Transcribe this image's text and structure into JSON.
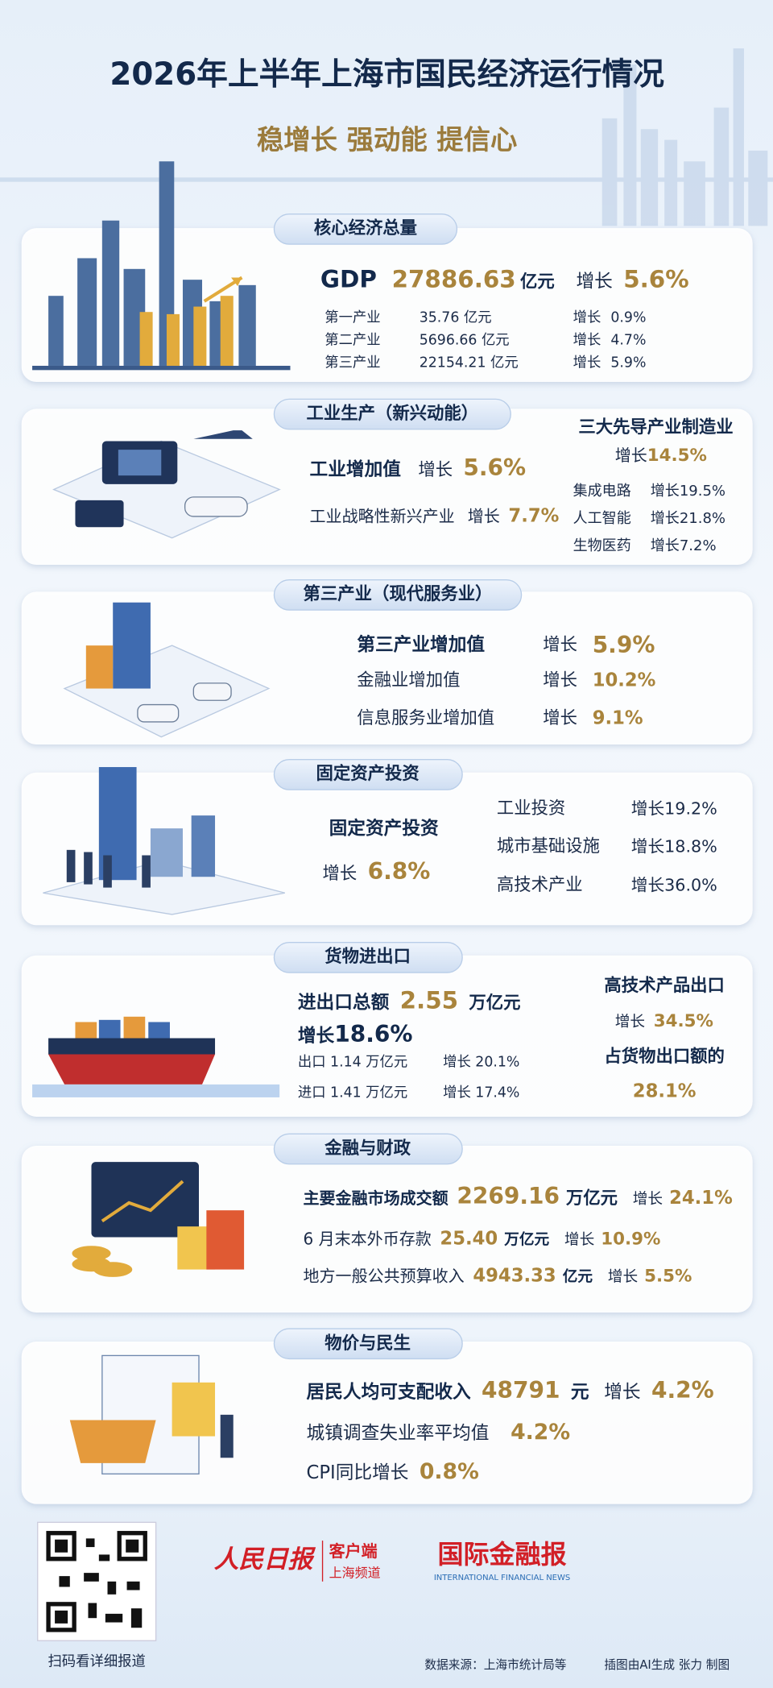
{
  "header": {
    "title": "2026年上半年上海市国民经济运行情况",
    "subtitle": "稳增长 强动能 提信心"
  },
  "core": {
    "tab": "核心经济总量",
    "gdp_label": "GDP",
    "gdp_value": "27886.63",
    "gdp_unit": "亿元",
    "growth_label": "增长",
    "gdp_growth": "5.6%",
    "rows": [
      [
        "第一产业",
        "35.76 亿元",
        "增长",
        "0.9%"
      ],
      [
        "第二产业",
        "5696.66 亿元",
        "增长",
        "4.7%"
      ],
      [
        "第三产业",
        "22154.21 亿元",
        "增长",
        "5.9%"
      ]
    ]
  },
  "industry": {
    "tab": "工业生产（新兴动能）",
    "value_added_label": "工业增加值",
    "growth_label": "增长",
    "value_added_growth": "5.6%",
    "strategic_label": "工业战略性新兴产业",
    "strategic_growth_label": "增长",
    "strategic_growth": "7.7%",
    "leading_title": "三大先导产业制造业",
    "leading_growth_label": "增长",
    "leading_growth": "14.5%",
    "leading_rows": [
      [
        "集成电路",
        "增长19.5%"
      ],
      [
        "人工智能",
        "增长21.8%"
      ],
      [
        "生物医药",
        "增长7.2%"
      ]
    ]
  },
  "services": {
    "tab": "第三产业（现代服务业）",
    "rows": [
      [
        "第三产业增加值",
        "增长",
        "5.9%"
      ],
      [
        "金融业增加值",
        "增长",
        "10.2%"
      ],
      [
        "信息服务业增加值",
        "增长",
        "9.1%"
      ]
    ]
  },
  "investment": {
    "tab": "固定资产投资",
    "label": "固定资产投资",
    "growth_label": "增长",
    "growth": "6.8%",
    "rows": [
      [
        "工业投资",
        "增长19.2%"
      ],
      [
        "城市基础设施",
        "增长18.8%"
      ],
      [
        "高技术产业",
        "增长36.0%"
      ]
    ]
  },
  "trade": {
    "tab": "货物进出口",
    "total_label": "进出口总额",
    "total_value": "2.55",
    "total_unit": "万亿元",
    "total_growth_label": "增长",
    "total_growth": "18.6%",
    "rows": [
      [
        "出口 1.14 万亿元",
        "增长 20.1%"
      ],
      [
        "进口 1.41 万亿元",
        "增长 17.4%"
      ]
    ],
    "hightech_title": "高技术产品出口",
    "hightech_growth_label": "增长",
    "hightech_growth": "34.5%",
    "share_label": "占货物出口额的",
    "share": "28.1%"
  },
  "finance": {
    "tab": "金融与财政",
    "rows": [
      [
        "主要金融市场成交额",
        "2269.16",
        "万亿元",
        "增长",
        "24.1%"
      ],
      [
        "6 月末本外币存款",
        "25.40",
        "万亿元",
        "增长",
        "10.9%"
      ],
      [
        "地方一般公共预算收入",
        "4943.33",
        "亿元",
        "增长",
        "5.5%"
      ]
    ]
  },
  "livelihood": {
    "tab": "物价与民生",
    "income_label": "居民人均可支配收入",
    "income_value": "48791",
    "income_unit": "元",
    "income_growth_label": "增长",
    "income_growth": "4.2%",
    "unemployment_label": "城镇调查失业率平均值",
    "unemployment": "4.2%",
    "cpi_label": "CPI同比增长",
    "cpi": "0.8%"
  },
  "footer": {
    "qr_caption": "扫码看详细报道",
    "logo1": "人民日报",
    "logo1_sub": "客户端",
    "logo1_sub2": "上海频道",
    "logo2": "国际金融报",
    "logo2_en": "INTERNATIONAL FINANCIAL NEWS",
    "source": "数据来源：上海市统计局等",
    "credit": "插图由AI生成 张力 制图"
  }
}
